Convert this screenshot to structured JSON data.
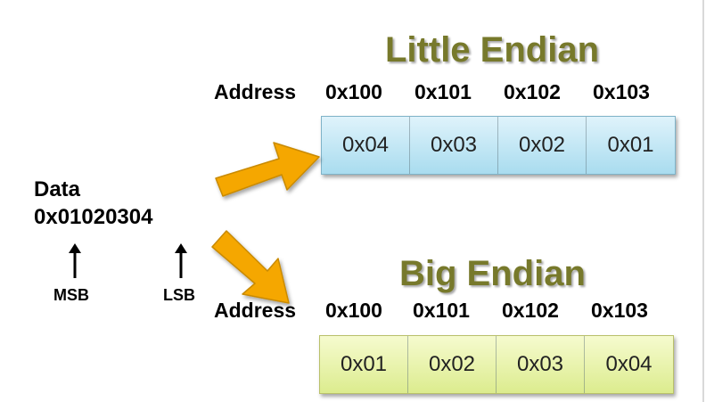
{
  "little_endian": {
    "title": "Little Endian",
    "address_label": "Address",
    "addresses": [
      "0x100",
      "0x101",
      "0x102",
      "0x103"
    ],
    "cells": [
      "0x04",
      "0x03",
      "0x02",
      "0x01"
    ],
    "fill_color": "#b7e2f2"
  },
  "big_endian": {
    "title": "Big Endian",
    "address_label": "Address",
    "addresses": [
      "0x100",
      "0x101",
      "0x102",
      "0x103"
    ],
    "cells": [
      "0x01",
      "0x02",
      "0x03",
      "0x04"
    ],
    "fill_color": "#e6f1a8"
  },
  "data": {
    "label": "Data",
    "value": "0x01020304",
    "msb_label": "MSB",
    "lsb_label": "LSB"
  },
  "colors": {
    "title": "#77792b",
    "arrow_fill": "#f5a700",
    "arrow_stroke": "#c98a00"
  },
  "icons": [
    "up-arrow-icon",
    "right-arrow-icon"
  ]
}
